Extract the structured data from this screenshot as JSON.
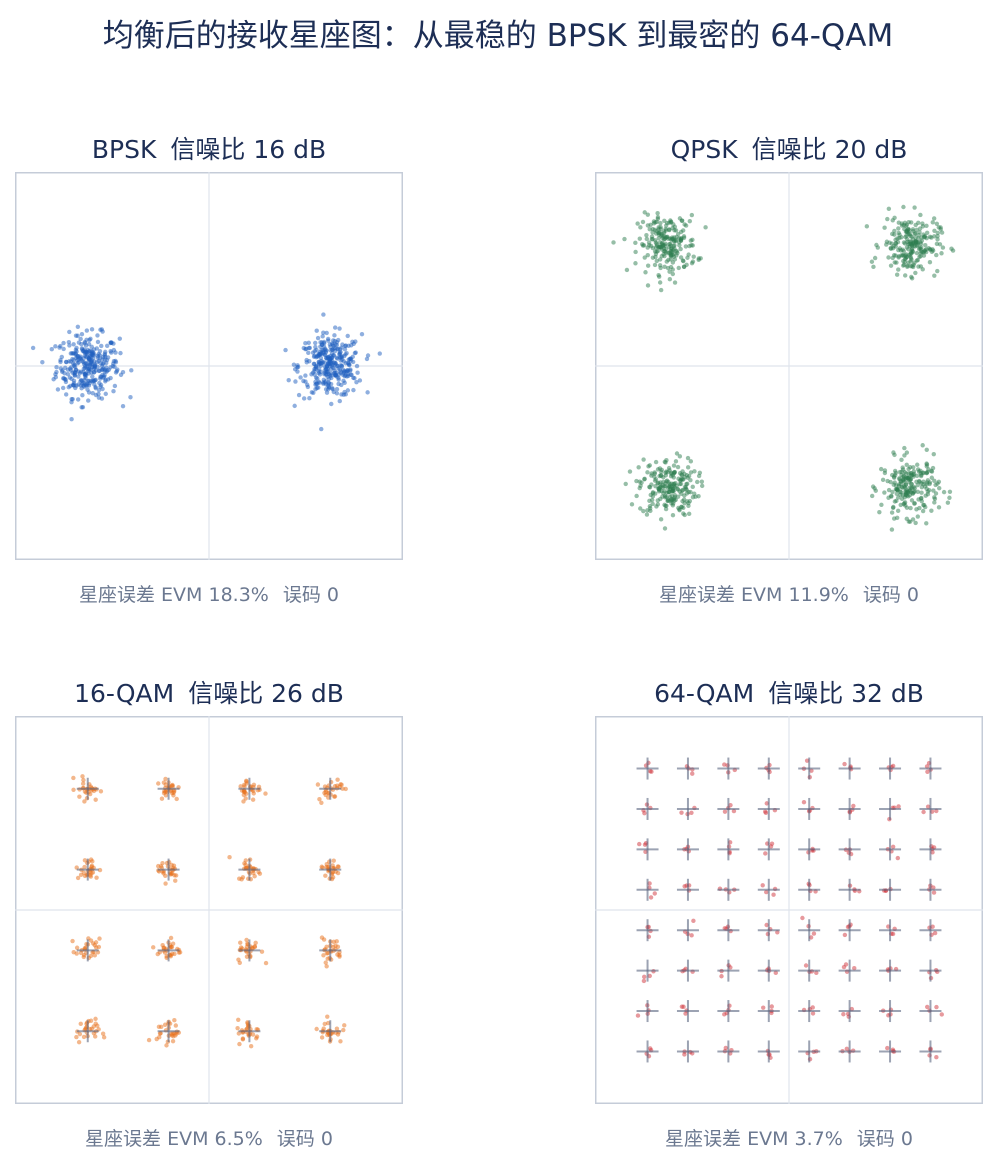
{
  "page": {
    "title": "均衡后的接收星座图：从最稳的 BPSK 到最密的 64-QAM"
  },
  "chart_data": [
    {
      "type": "scatter",
      "modulation": "BPSK",
      "snr_label": "信噪比 16 dB",
      "evm_label": "星座误差 EVM 18.3%",
      "error_label": "误码 0",
      "evm_percent": 18.3,
      "bit_errors": 0,
      "levels": [
        -1,
        1
      ],
      "levels_q": [
        0
      ],
      "axis_limit": 1.6,
      "point_color": "#1f5fbf",
      "points_per_symbol": 320,
      "show_ideal_markers": false,
      "grid": "axes-only"
    },
    {
      "type": "scatter",
      "modulation": "QPSK",
      "snr_label": "信噪比 20 dB",
      "evm_label": "星座误差 EVM 11.9%",
      "error_label": "误码 0",
      "evm_percent": 11.9,
      "bit_errors": 0,
      "levels": [
        -1,
        1
      ],
      "levels_q": [
        -1,
        1
      ],
      "axis_limit": 1.6,
      "point_color": "#2e7d4f",
      "points_per_symbol": 220,
      "show_ideal_markers": false,
      "grid": "axes-only"
    },
    {
      "type": "scatter",
      "modulation": "16-QAM",
      "snr_label": "信噪比 26 dB",
      "evm_label": "星座误差 EVM 6.5%",
      "error_label": "误码 0",
      "evm_percent": 6.5,
      "bit_errors": 0,
      "levels": [
        -3,
        -1,
        1,
        3
      ],
      "levels_q": [
        -3,
        -1,
        1,
        3
      ],
      "axis_limit": 4.8,
      "point_color": "#e8701a",
      "points_per_symbol": 28,
      "show_ideal_markers": true,
      "grid": "axes-only"
    },
    {
      "type": "scatter",
      "modulation": "64-QAM",
      "snr_label": "信噪比 32 dB",
      "evm_label": "星座误差 EVM 3.7%",
      "error_label": "误码 0",
      "evm_percent": 3.7,
      "bit_errors": 0,
      "levels": [
        -7,
        -5,
        -3,
        -1,
        1,
        3,
        5,
        7
      ],
      "levels_q": [
        -7,
        -5,
        -3,
        -1,
        1,
        3,
        5,
        7
      ],
      "axis_limit": 9.6,
      "point_color": "#d0343c",
      "points_per_symbol": 4,
      "show_ideal_markers": true,
      "grid": "axes-only"
    }
  ]
}
